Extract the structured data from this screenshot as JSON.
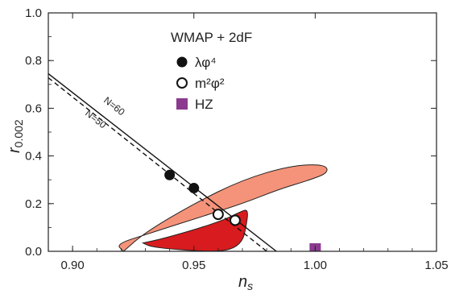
{
  "chart_data": {
    "type": "scatter",
    "title": "",
    "xlabel_main": "n",
    "xlabel_sub": "s",
    "ylabel_main": "r",
    "ylabel_sub": "0.002",
    "xlim": [
      0.89,
      1.05
    ],
    "ylim": [
      0.0,
      1.0
    ],
    "xticks": [
      0.9,
      0.95,
      1.0,
      1.05
    ],
    "xtick_labels": [
      "0.90",
      "0.95",
      "1.00",
      "1.05"
    ],
    "yticks": [
      0.0,
      0.2,
      0.4,
      0.6,
      0.8,
      1.0
    ],
    "ytick_labels": [
      "0.0",
      "0.2",
      "0.4",
      "0.6",
      "0.8",
      "1.0"
    ],
    "legend": {
      "title": "WMAP + 2dF",
      "position": "top-center",
      "entries": [
        {
          "label": "λφ⁴",
          "marker": "filled-circle"
        },
        {
          "label": "m²φ²",
          "marker": "open-circle"
        },
        {
          "label": "HZ",
          "marker": "square"
        }
      ]
    },
    "contours": [
      {
        "level": "outer",
        "color": "#f4937a",
        "x": [
          0.921,
          0.918,
          0.93,
          0.95,
          0.97,
          0.985,
          0.998,
          1.0055,
          1.004,
          0.99,
          0.97,
          0.95,
          0.93,
          0.921
        ],
        "y": [
          0.0,
          0.03,
          0.07,
          0.135,
          0.2,
          0.26,
          0.3,
          0.33,
          0.365,
          0.36,
          0.3,
          0.2,
          0.08,
          0.0
        ]
      },
      {
        "level": "inner",
        "color": "#d81b1e",
        "x": [
          0.929,
          0.936,
          0.95,
          0.962,
          0.969,
          0.9725,
          0.9715,
          0.97,
          0.965,
          0.957,
          0.95,
          0.94,
          0.932,
          0.929
        ],
        "y": [
          0.035,
          0.05,
          0.09,
          0.13,
          0.165,
          0.178,
          0.1,
          0.04,
          0.005,
          0.0,
          0.003,
          0.01,
          0.02,
          0.035
        ]
      }
    ],
    "lines": [
      {
        "label": "N=60",
        "style": "solid",
        "x": [
          0.89,
          0.984
        ],
        "y": [
          0.745,
          0.0
        ]
      },
      {
        "label": "N=50",
        "style": "dashed",
        "x": [
          0.89,
          0.98
        ],
        "y": [
          0.728,
          0.0
        ]
      }
    ],
    "series": [
      {
        "name": "λφ⁴",
        "marker": "filled-circle",
        "color": "#111111",
        "x": [
          0.94,
          0.95
        ],
        "y": [
          0.32,
          0.265
        ]
      },
      {
        "name": "m²φ²",
        "marker": "open-circle",
        "color": "#111111",
        "x": [
          0.96,
          0.967
        ],
        "y": [
          0.155,
          0.13
        ]
      },
      {
        "name": "HZ",
        "marker": "square",
        "color": "#8b3a8f",
        "x": [
          1.0
        ],
        "y": [
          0.0
        ]
      }
    ]
  }
}
